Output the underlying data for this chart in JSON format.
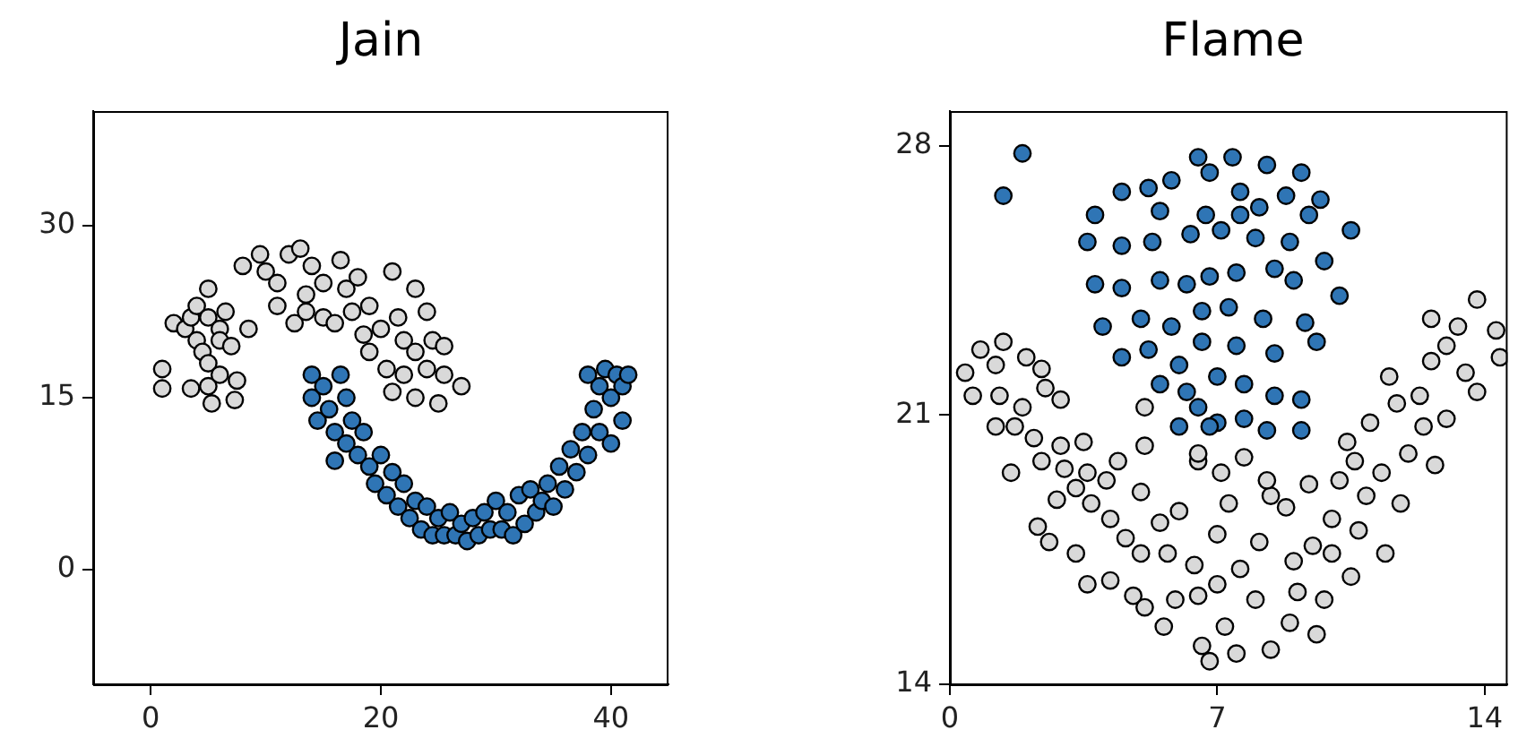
{
  "chart_data": [
    {
      "type": "scatter",
      "title": "Jain",
      "xlim": [
        -5,
        45
      ],
      "ylim": [
        -10,
        40
      ],
      "xticks": [
        0,
        20,
        40
      ],
      "yticks": [
        0,
        15,
        30
      ],
      "grid": false,
      "legend": false,
      "marker": "circle",
      "series": [
        {
          "color": "#d9d9d9",
          "x": [
            1,
            1,
            2,
            3,
            3.5,
            4,
            4,
            4.5,
            5,
            5,
            5,
            5,
            5.3,
            6,
            6,
            6.5,
            6,
            7,
            7.5,
            7.3,
            3.5,
            8.5,
            8,
            9.5,
            10,
            11,
            11,
            12,
            12.5,
            13,
            13.5,
            13.5,
            14,
            15,
            15,
            16,
            16.5,
            17,
            17.5,
            18,
            18.5,
            19,
            19,
            20,
            20.5,
            21,
            21,
            21.5,
            22,
            22,
            23,
            23,
            23,
            24,
            24,
            24.5,
            25,
            25.5,
            25.5,
            27
          ],
          "values": [
            17.5,
            15.8,
            21.5,
            21,
            22,
            23,
            20,
            19,
            24.5,
            22,
            18,
            16,
            14.5,
            21,
            20,
            22.5,
            17,
            19.5,
            16.5,
            14.8,
            15.8,
            21,
            26.5,
            27.5,
            26,
            25,
            23,
            27.5,
            21.5,
            28,
            24,
            22.5,
            26.5,
            25,
            22,
            21.5,
            27,
            24.5,
            22.5,
            25.5,
            20.5,
            23,
            19,
            21,
            17.5,
            26,
            15.5,
            22,
            20,
            17,
            24.5,
            19,
            15,
            22.5,
            17.5,
            20,
            14.5,
            17,
            19.5,
            16
          ]
        },
        {
          "color": "#2f75b5",
          "x": [
            14,
            14,
            14.5,
            15,
            15.5,
            16,
            16.5,
            17,
            17,
            17.5,
            18,
            18.5,
            19,
            19.5,
            20,
            20.5,
            21,
            21.5,
            22,
            22.5,
            23,
            23.5,
            24,
            24.5,
            25,
            25.5,
            26,
            26.5,
            27,
            27.5,
            28,
            28.5,
            29,
            29.5,
            30,
            30.5,
            31,
            31.5,
            32,
            32.5,
            33,
            33.5,
            34,
            34.5,
            35,
            35.5,
            36,
            36.5,
            37,
            37.5,
            38,
            38.5,
            39,
            39,
            39.5,
            40,
            40.5,
            41,
            41.5,
            41,
            40,
            38,
            16
          ],
          "values": [
            17,
            15,
            13,
            16,
            14,
            12,
            17,
            15,
            11,
            13,
            10,
            12,
            9,
            7.5,
            10,
            6.5,
            8.5,
            5.5,
            7.5,
            4.5,
            6,
            3.5,
            5.5,
            3,
            4.5,
            3,
            5,
            3,
            4,
            2.5,
            4.5,
            3,
            5,
            3.5,
            6,
            3.5,
            5,
            3,
            6.5,
            4,
            7,
            5,
            6,
            7.5,
            5.5,
            9,
            7,
            10.5,
            8.5,
            12,
            10,
            14,
            12,
            16,
            17.5,
            15,
            17,
            16,
            17,
            13,
            11,
            17,
            9.5
          ]
        }
      ]
    },
    {
      "type": "scatter",
      "title": "Flame",
      "xlim": [
        0,
        14.6
      ],
      "ylim": [
        14,
        28.9
      ],
      "xticks": [
        0,
        7,
        14
      ],
      "yticks": [
        14,
        21,
        28
      ],
      "grid": false,
      "legend": false,
      "marker": "circle",
      "series": [
        {
          "color": "#d9d9d9",
          "x": [
            0.4,
            0.8,
            1.4,
            1.2,
            2.0,
            2.4,
            0.6,
            1.3,
            1.9,
            2.5,
            2.9,
            1.2,
            1.7,
            2.2,
            2.9,
            1.6,
            2.4,
            3.0,
            3.5,
            3.6,
            4.4,
            2.8,
            3.3,
            2.3,
            3.7,
            4.1,
            2.6,
            3.3,
            4.2,
            4.6,
            5.0,
            5.5,
            5.0,
            4.2,
            3.6,
            4.8,
            5.7,
            6.0,
            6.5,
            7.1,
            7.7,
            5.9,
            6.4,
            7.0,
            7.3,
            6.5,
            7.6,
            8.1,
            8.4,
            7.2,
            6.8,
            7.5,
            8.4,
            6.6,
            5.6,
            5.1,
            8.9,
            9.6,
            9.1,
            9.8,
            10.5,
            9.5,
            10.0,
            10.9,
            10.2,
            10.6,
            11.3,
            11.8,
            12.0,
            11.0,
            11.7,
            12.3,
            11.5,
            12.6,
            13.0,
            13.5,
            13.3,
            12.6,
            13.8,
            14.3,
            14.4,
            13.8,
            12.4,
            13.0,
            12.7,
            10.4,
            5.1,
            5.1,
            6.5,
            8.3,
            8.8,
            9.4,
            10.7,
            11.4,
            8.0,
            7.0,
            9.0,
            10.0
          ],
          "values": [
            22.1,
            22.7,
            22.9,
            22.3,
            22.5,
            22.2,
            21.5,
            21.5,
            21.2,
            21.7,
            21.4,
            20.7,
            20.7,
            20.4,
            20.2,
            19.5,
            19.8,
            19.6,
            20.3,
            19.5,
            19.8,
            18.8,
            19.1,
            18.1,
            18.7,
            19.3,
            17.7,
            17.4,
            18.3,
            17.8,
            19.0,
            18.2,
            17.4,
            16.7,
            16.6,
            16.3,
            17.4,
            18.5,
            19.8,
            19.5,
            19.9,
            16.2,
            17.1,
            17.9,
            18.7,
            16.3,
            17.0,
            17.7,
            18.9,
            15.5,
            14.6,
            14.8,
            14.9,
            15.0,
            15.5,
            16.0,
            15.6,
            15.3,
            16.4,
            16.2,
            16.8,
            17.6,
            18.3,
            18.9,
            19.3,
            19.8,
            19.5,
            18.7,
            20.0,
            20.8,
            21.3,
            21.5,
            22.0,
            22.4,
            22.8,
            22.1,
            23.3,
            23.5,
            24.0,
            23.2,
            22.5,
            21.6,
            20.7,
            20.9,
            19.7,
            20.3,
            20.2,
            21.2,
            20.0,
            19.3,
            18.6,
            19.2,
            18.0,
            17.4,
            16.2,
            16.6,
            17.2,
            17.4
          ]
        },
        {
          "color": "#2f75b5",
          "x": [
            1.9,
            1.4,
            6.5,
            7.4,
            8.3,
            9.2,
            5.8,
            6.8,
            4.5,
            5.2,
            7.6,
            8.8,
            9.7,
            3.8,
            5.5,
            6.7,
            7.6,
            8.1,
            9.4,
            10.5,
            3.6,
            4.5,
            5.3,
            6.3,
            7.1,
            8.0,
            8.9,
            9.8,
            3.8,
            4.5,
            5.5,
            6.2,
            6.8,
            7.5,
            8.5,
            9.0,
            10.2,
            4.0,
            5.0,
            5.8,
            6.6,
            7.3,
            8.2,
            9.3,
            4.5,
            5.2,
            6.0,
            6.6,
            7.5,
            8.5,
            9.6,
            5.5,
            6.2,
            7.0,
            7.7,
            8.5,
            9.2,
            6.5,
            7.0,
            7.7,
            6.0,
            6.8,
            8.3,
            9.2
          ],
          "values": [
            27.8,
            26.7,
            27.7,
            27.7,
            27.5,
            27.3,
            27.1,
            27.3,
            26.8,
            26.9,
            26.8,
            26.7,
            26.6,
            26.2,
            26.3,
            26.2,
            26.2,
            26.4,
            26.2,
            25.8,
            25.5,
            25.4,
            25.5,
            25.7,
            25.8,
            25.6,
            25.5,
            25.0,
            24.4,
            24.3,
            24.5,
            24.4,
            24.6,
            24.7,
            24.8,
            24.5,
            24.1,
            23.3,
            23.5,
            23.3,
            23.7,
            23.8,
            23.5,
            23.4,
            22.5,
            22.7,
            22.3,
            22.9,
            22.8,
            22.6,
            22.9,
            21.8,
            21.6,
            22.0,
            21.8,
            21.5,
            21.4,
            21.2,
            20.8,
            20.9,
            20.7,
            20.7,
            20.6,
            20.6
          ]
        }
      ]
    }
  ]
}
